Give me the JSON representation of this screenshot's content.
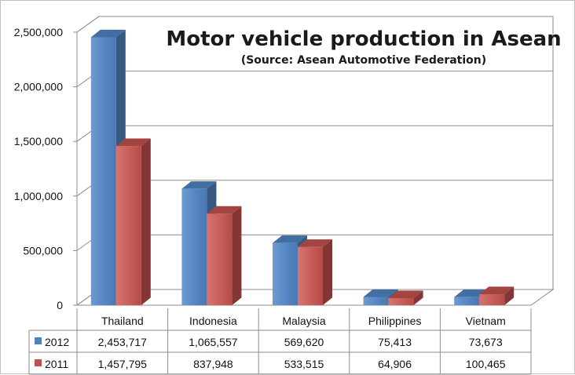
{
  "chart_data": {
    "type": "bar",
    "title": "Motor vehicle production in Asean",
    "subtitle": "(Source: Asean Automotive Federation)",
    "categories": [
      "Thailand",
      "Indonesia",
      "Malaysia",
      "Philippines",
      "Vietnam"
    ],
    "series": [
      {
        "name": "2012",
        "color": "#4f81bd",
        "values": [
          2453717,
          1065557,
          569620,
          75413,
          73673
        ],
        "labels": [
          "2,453,717",
          "1,065,557",
          "569,620",
          "75,413",
          "73,673"
        ]
      },
      {
        "name": "2011",
        "color": "#c0504d",
        "values": [
          1457795,
          837948,
          533515,
          64906,
          100465
        ],
        "labels": [
          "1,457,795",
          "837,948",
          "533,515",
          "64,906",
          "100,465"
        ]
      }
    ],
    "ylim": [
      0,
      2500000
    ],
    "yticks": [
      0,
      500000,
      1000000,
      1500000,
      2000000,
      2500000
    ],
    "ytick_labels": [
      "0",
      "500,000",
      "1,000,000",
      "1,500,000",
      "2,000,000",
      "2,500,000"
    ],
    "grid": true,
    "legend": "data-table",
    "xlabel": "",
    "ylabel": ""
  }
}
